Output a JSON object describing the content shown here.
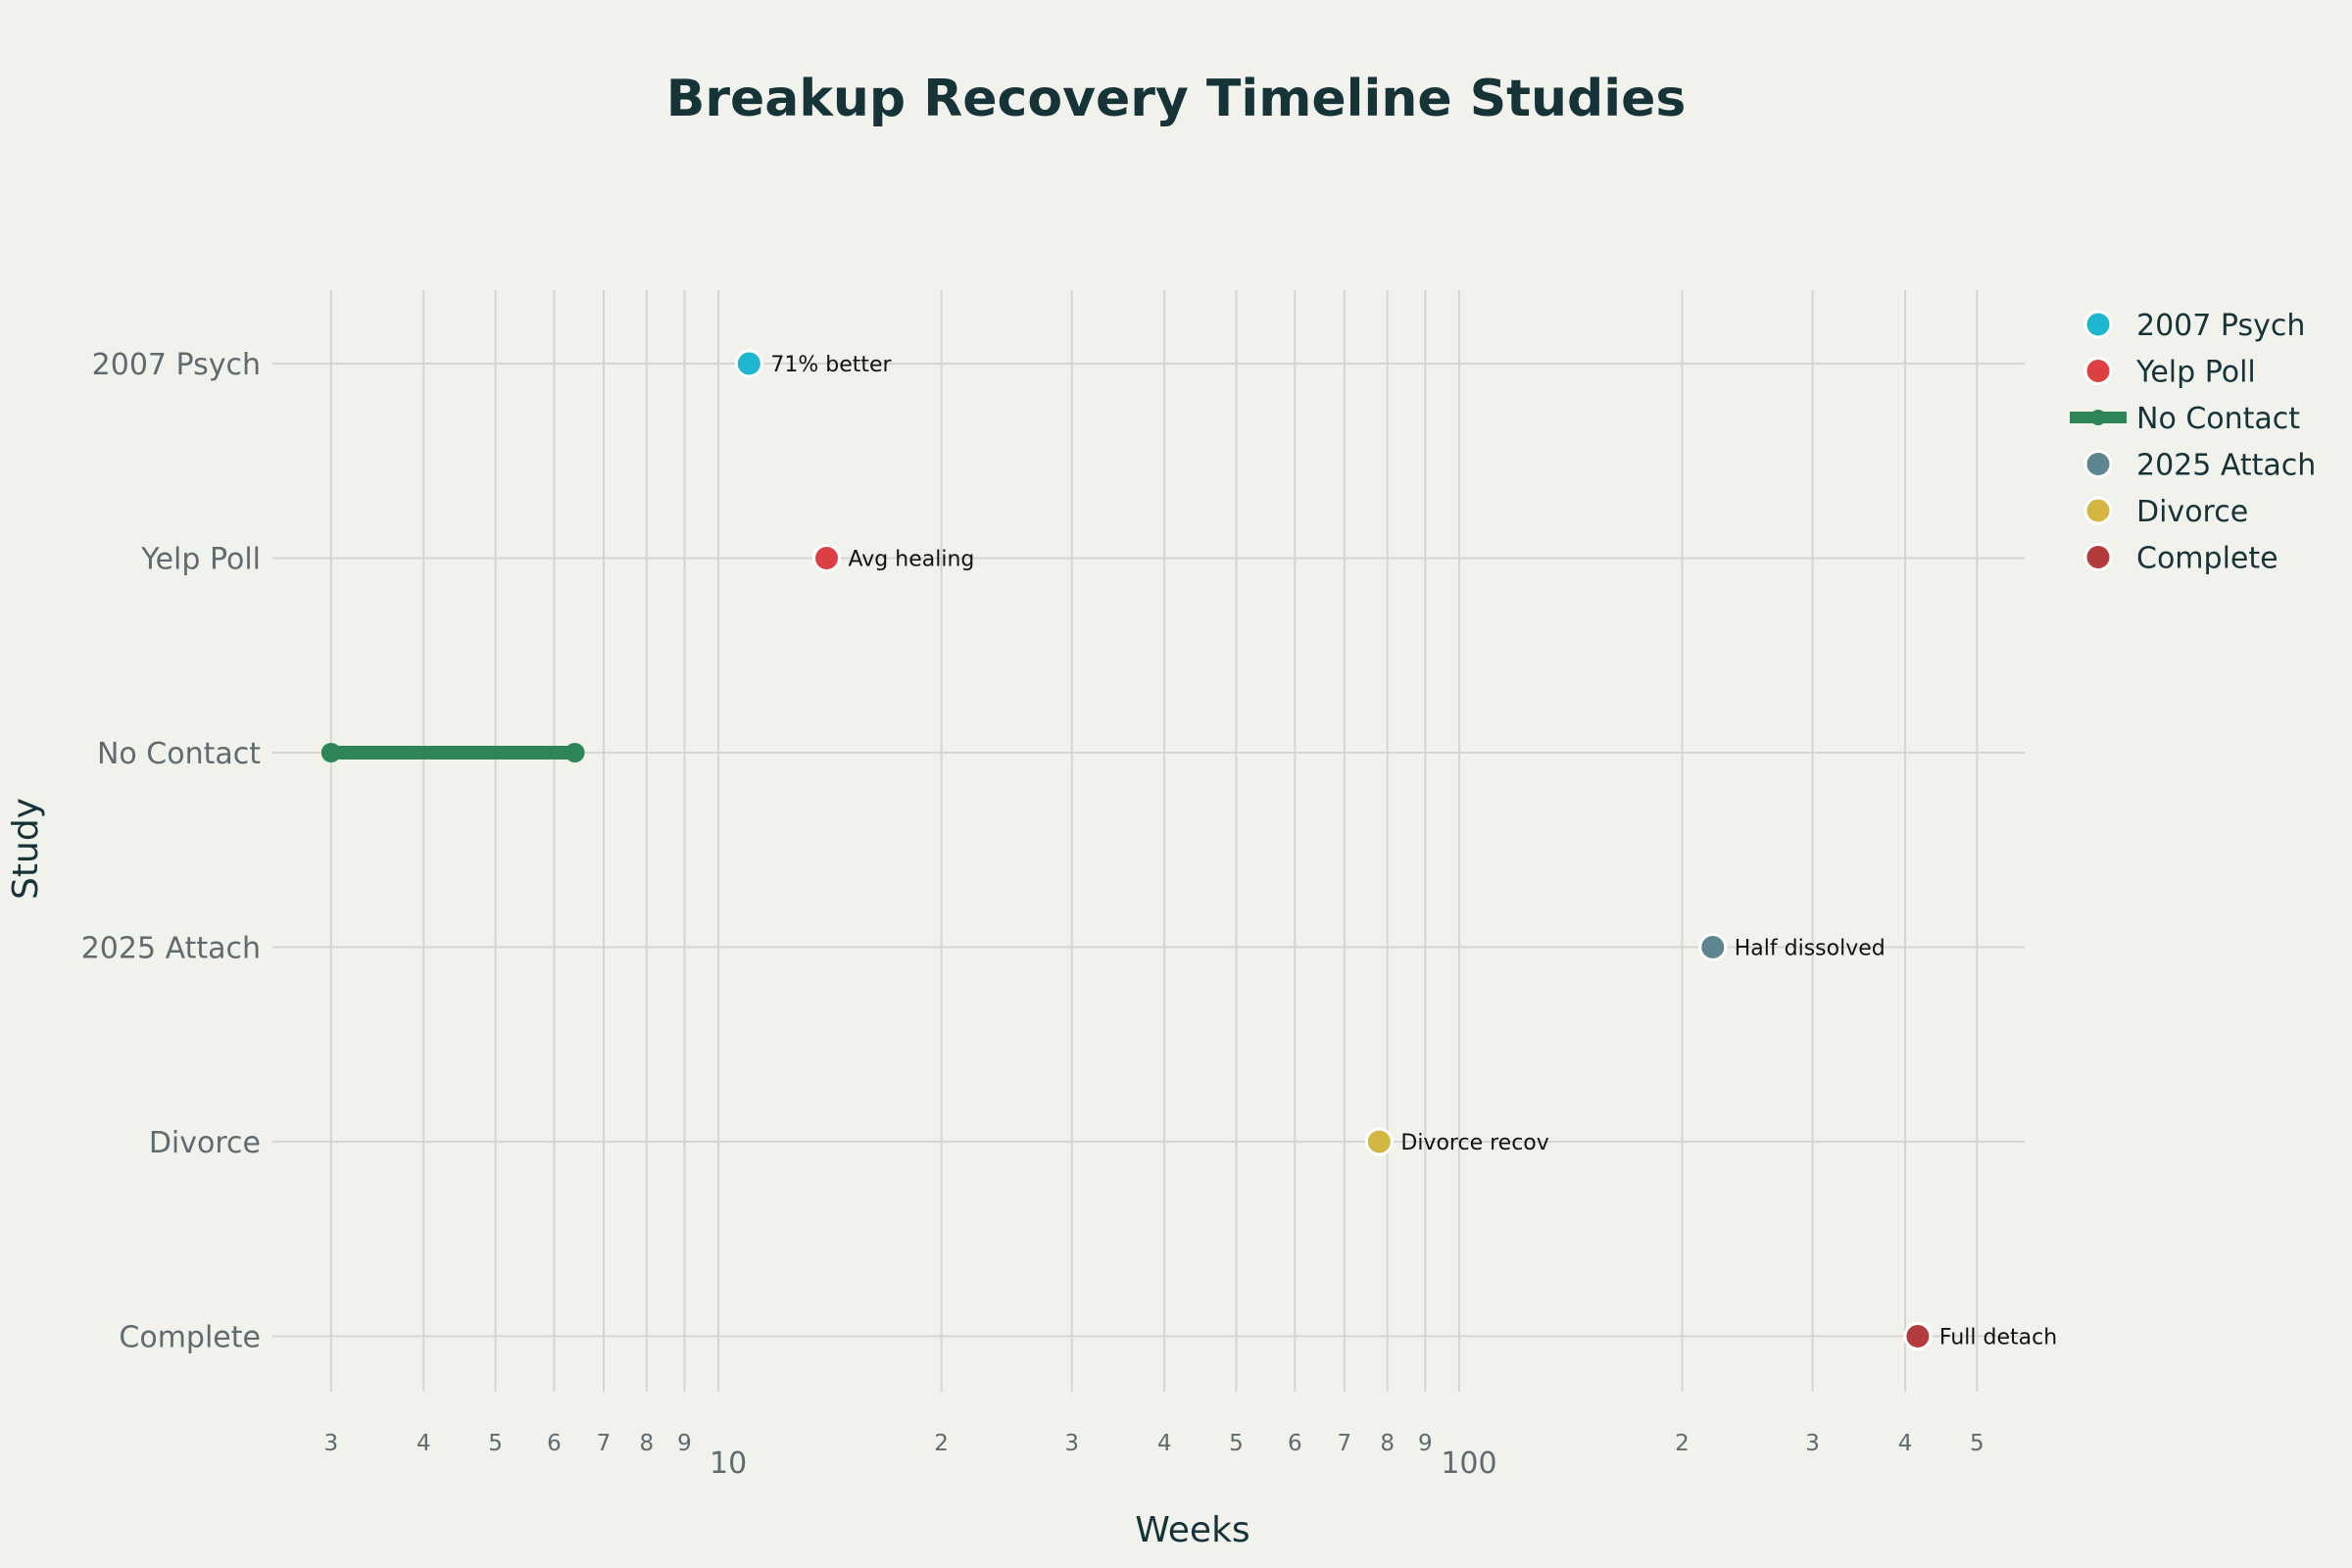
{
  "chart_data": {
    "type": "scatter",
    "title": "Breakup Recovery Timeline Studies",
    "xlabel": "Weeks",
    "ylabel": "Study",
    "x_scale": "log",
    "xlim": [
      2.5,
      580
    ],
    "x_minor_ticks": [
      {
        "value": 3,
        "label": "3"
      },
      {
        "value": 4,
        "label": "4"
      },
      {
        "value": 5,
        "label": "5"
      },
      {
        "value": 6,
        "label": "6"
      },
      {
        "value": 7,
        "label": "7"
      },
      {
        "value": 8,
        "label": "8"
      },
      {
        "value": 9,
        "label": "9"
      },
      {
        "value": 20,
        "label": "2"
      },
      {
        "value": 30,
        "label": "3"
      },
      {
        "value": 40,
        "label": "4"
      },
      {
        "value": 50,
        "label": "5"
      },
      {
        "value": 60,
        "label": "6"
      },
      {
        "value": 70,
        "label": "7"
      },
      {
        "value": 80,
        "label": "8"
      },
      {
        "value": 90,
        "label": "9"
      },
      {
        "value": 200,
        "label": "2"
      },
      {
        "value": 300,
        "label": "3"
      },
      {
        "value": 400,
        "label": "4"
      },
      {
        "value": 500,
        "label": "5"
      }
    ],
    "x_major_ticks": [
      {
        "value": 10,
        "label": "10"
      },
      {
        "value": 100,
        "label": "100"
      }
    ],
    "categories": [
      "2007 Psych",
      "Yelp Poll",
      "No Contact",
      "2025 Attach",
      "Divorce",
      "Complete"
    ],
    "series": [
      {
        "name": "2007 Psych",
        "kind": "point",
        "x": 11,
        "category": "2007 Psych",
        "label": "71% better",
        "color": "#1fb6d0"
      },
      {
        "name": "Yelp Poll",
        "kind": "point",
        "x": 14,
        "category": "Yelp Poll",
        "label": "Avg healing",
        "color": "#dc4045"
      },
      {
        "name": "No Contact",
        "kind": "range",
        "x_start": 3,
        "x_end": 6.4,
        "category": "No Contact",
        "label": "",
        "color": "#2e8555"
      },
      {
        "name": "2025 Attach",
        "kind": "point",
        "x": 220,
        "category": "2025 Attach",
        "label": "Half dissolved",
        "color": "#5e8690"
      },
      {
        "name": "Divorce",
        "kind": "point",
        "x": 78,
        "category": "Divorce",
        "label": "Divorce recov",
        "color": "#d4b643"
      },
      {
        "name": "Complete",
        "kind": "point",
        "x": 416,
        "category": "Complete",
        "label": "Full detach",
        "color": "#b43b3b"
      }
    ],
    "legend_position": "top-right",
    "grid": true
  }
}
